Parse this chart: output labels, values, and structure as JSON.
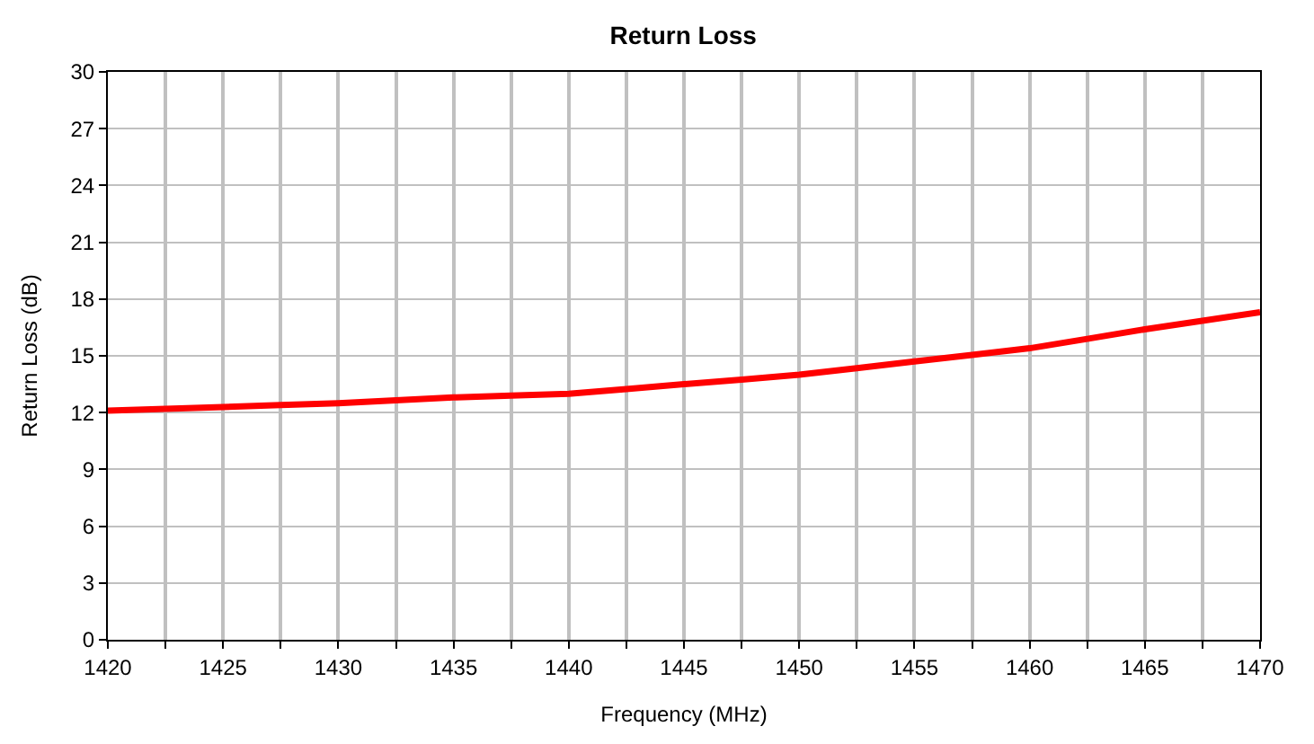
{
  "chart_data": {
    "type": "line",
    "title": "Return Loss",
    "xlabel": "Frequency (MHz)",
    "ylabel": "Return Loss (dB)",
    "x": [
      1420,
      1425,
      1430,
      1435,
      1440,
      1445,
      1450,
      1455,
      1460,
      1465,
      1470
    ],
    "series": [
      {
        "color": "#ff0000",
        "values": [
          12.1,
          12.3,
          12.5,
          12.8,
          13.0,
          13.5,
          14.0,
          14.7,
          15.4,
          16.4,
          17.3
        ]
      }
    ],
    "xlim": [
      1420,
      1470
    ],
    "xticks": [
      1420,
      {
        "value": 1422.5,
        "label": null
      },
      1425,
      {
        "value": 1427.5,
        "label": null
      },
      1430,
      {
        "value": 1432.5,
        "label": null
      },
      1435,
      {
        "value": 1437.5,
        "label": null
      },
      1440,
      {
        "value": 1442.5,
        "label": null
      },
      1445,
      {
        "value": 1447.5,
        "label": null
      },
      1450,
      {
        "value": 1452.5,
        "label": null
      },
      1455,
      {
        "value": 1457.5,
        "label": null
      },
      1460,
      {
        "value": 1462.5,
        "label": null
      },
      1465,
      {
        "value": 1467.5,
        "label": null
      },
      1470
    ],
    "ylim": [
      0,
      30
    ],
    "yticks": [
      0,
      3,
      6,
      9,
      12,
      15,
      18,
      21,
      24,
      27,
      30
    ],
    "grid": true,
    "marker": "none",
    "line_style": "solid"
  }
}
